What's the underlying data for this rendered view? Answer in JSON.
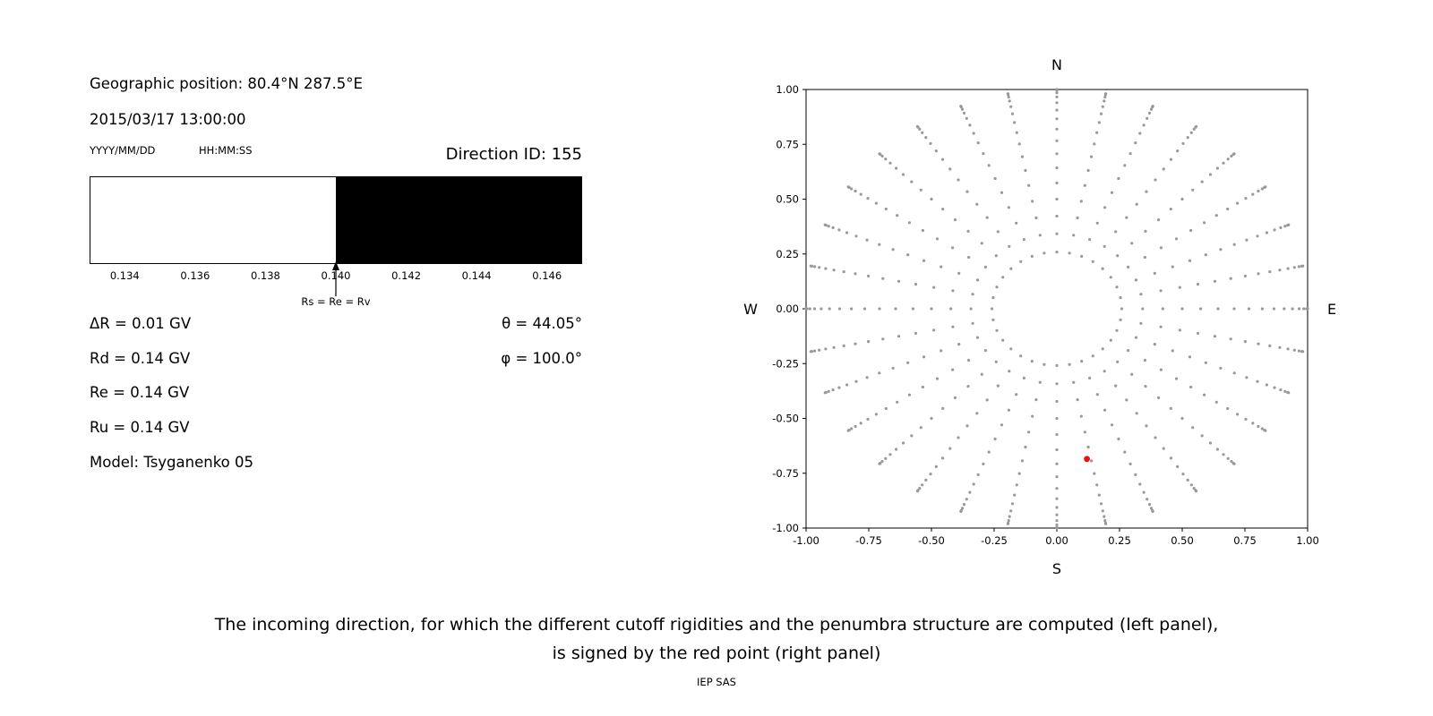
{
  "left_panel": {
    "geographic_position": "Geographic position: 80.4°N 287.5°E",
    "datetime": "2015/03/17 13:00:00",
    "date_format_hint": "YYYY/MM/DD",
    "time_format_hint": "HH:MM:SS",
    "direction_id": "Direction ID: 155",
    "params_left": [
      "ΔR = 0.01 GV",
      "Rd = 0.14 GV",
      "Re = 0.14 GV",
      "Ru = 0.14 GV",
      "Model: Tsyganenko 05"
    ],
    "params_right": [
      "θ = 44.05°",
      "φ = 100.0°"
    ]
  },
  "chart_data": [
    {
      "type": "area",
      "title": "penumbra structure (rigidity band)",
      "xlim": [
        0.133,
        0.147
      ],
      "x_ticks": [
        "0.134",
        "0.136",
        "0.138",
        "0.140",
        "0.142",
        "0.144",
        "0.146"
      ],
      "regions": [
        {
          "name": "allowed-band",
          "from": 0.133,
          "to": 0.14,
          "color": "#ffffff"
        },
        {
          "name": "forbidden-band",
          "from": 0.14,
          "to": 0.147,
          "color": "#000000"
        }
      ],
      "annotation": {
        "x": 0.14,
        "label": "Rs = Re = Rv"
      }
    },
    {
      "type": "scatter",
      "title": "incoming direction grid",
      "xlim": [
        -1,
        1
      ],
      "ylim": [
        -1,
        1
      ],
      "x_ticks": [
        "-1.00",
        "-0.75",
        "-0.50",
        "-0.25",
        "0.00",
        "0.25",
        "0.50",
        "0.75",
        "1.00"
      ],
      "y_ticks": [
        "1.00",
        "0.75",
        "0.50",
        "0.25",
        "0.00",
        "-0.25",
        "-0.50",
        "-0.75",
        "-1.00"
      ],
      "compass": {
        "top": "N",
        "bottom": "S",
        "left": "W",
        "right": "E"
      },
      "direction_grid": {
        "azimuth_count": 32,
        "zenith_start_deg": 15,
        "zenith_stop_deg": 90,
        "zenith_step_deg": 5,
        "radius": "sin(zenith)"
      },
      "grid_dot_color": "#999999",
      "red_point": {
        "x": 0.12,
        "y": -0.685,
        "color": "#ee1111"
      }
    }
  ],
  "caption": {
    "line1": "The incoming direction, for which the different cutoff rigidities and the penumbra structure are computed (left panel),",
    "line2": "is signed by the red point (right panel)"
  },
  "footer": {
    "credit": "IEP SAS"
  }
}
